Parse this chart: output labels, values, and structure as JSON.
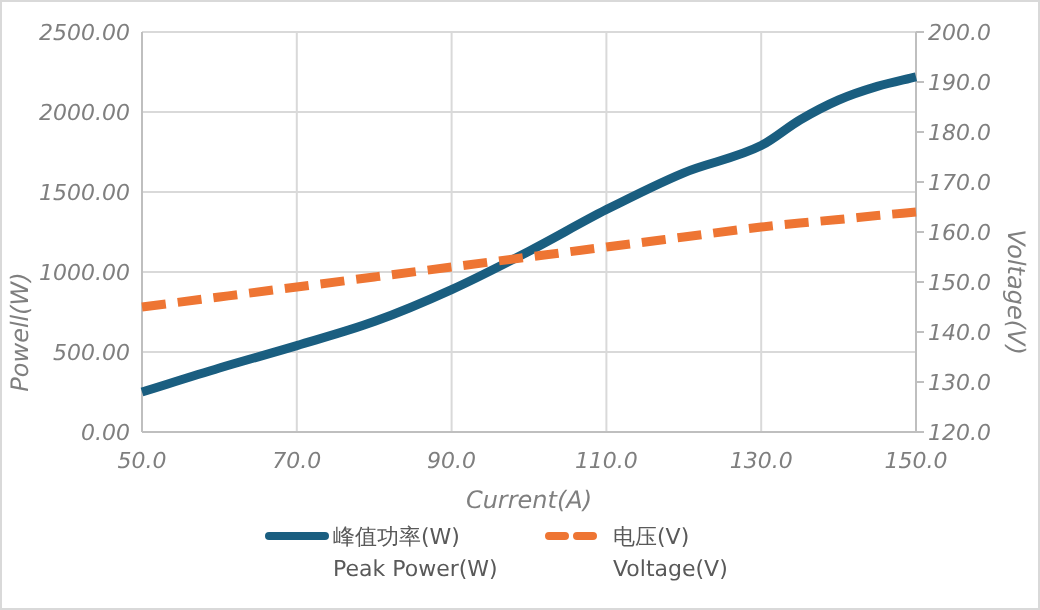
{
  "chart_data": {
    "type": "line",
    "xlabel": "Current(A)",
    "ylabel": "Powell(W)",
    "y2label": "Voltage(V)",
    "x": [
      50,
      60,
      70,
      80,
      90,
      100,
      110,
      120,
      130,
      135,
      140,
      145,
      150
    ],
    "series": [
      {
        "name": "峰值功率(W)\nPeak Power(W)",
        "color": "#1a5e80",
        "line_style": "solid",
        "values": [
          250,
          400,
          540,
          690,
          890,
          1130,
          1390,
          1620,
          1790,
          1950,
          2075,
          2160,
          2220
        ]
      },
      {
        "name": "电压(V)\nVoltage(V)",
        "color": "#ee7533",
        "line_style": "dashed",
        "axis": "y2",
        "values": [
          145,
          147,
          149,
          151,
          153,
          155,
          157,
          159,
          161,
          161.8,
          162.5,
          163.3,
          164
        ]
      }
    ],
    "xlim": [
      50,
      150
    ],
    "xticks": [
      {
        "value": 50,
        "label": "50.0"
      },
      {
        "value": 70,
        "label": "70.0"
      },
      {
        "value": 90,
        "label": "90.0"
      },
      {
        "value": 110,
        "label": "110.0"
      },
      {
        "value": 130,
        "label": "130.0"
      },
      {
        "value": 150,
        "label": "150.0"
      }
    ],
    "ylim": [
      0,
      2500
    ],
    "yticks": [
      {
        "value": 0,
        "label": "0.00"
      },
      {
        "value": 500,
        "label": "500.00"
      },
      {
        "value": 1000,
        "label": "1000.00"
      },
      {
        "value": 1500,
        "label": "1500.00"
      },
      {
        "value": 2000,
        "label": "2000.00"
      },
      {
        "value": 2500,
        "label": "2500.00"
      }
    ],
    "y2lim": [
      120,
      200
    ],
    "y2ticks": [
      {
        "value": 120,
        "label": "120.0"
      },
      {
        "value": 130,
        "label": "130.0"
      },
      {
        "value": 140,
        "label": "140.0"
      },
      {
        "value": 150,
        "label": "150.0"
      },
      {
        "value": 160,
        "label": "160.0"
      },
      {
        "value": 170,
        "label": "170.0"
      },
      {
        "value": 180,
        "label": "180.0"
      },
      {
        "value": 190,
        "label": "190.0"
      },
      {
        "value": 200,
        "label": "200.0"
      }
    ],
    "grid": true,
    "legend": "bottom"
  }
}
